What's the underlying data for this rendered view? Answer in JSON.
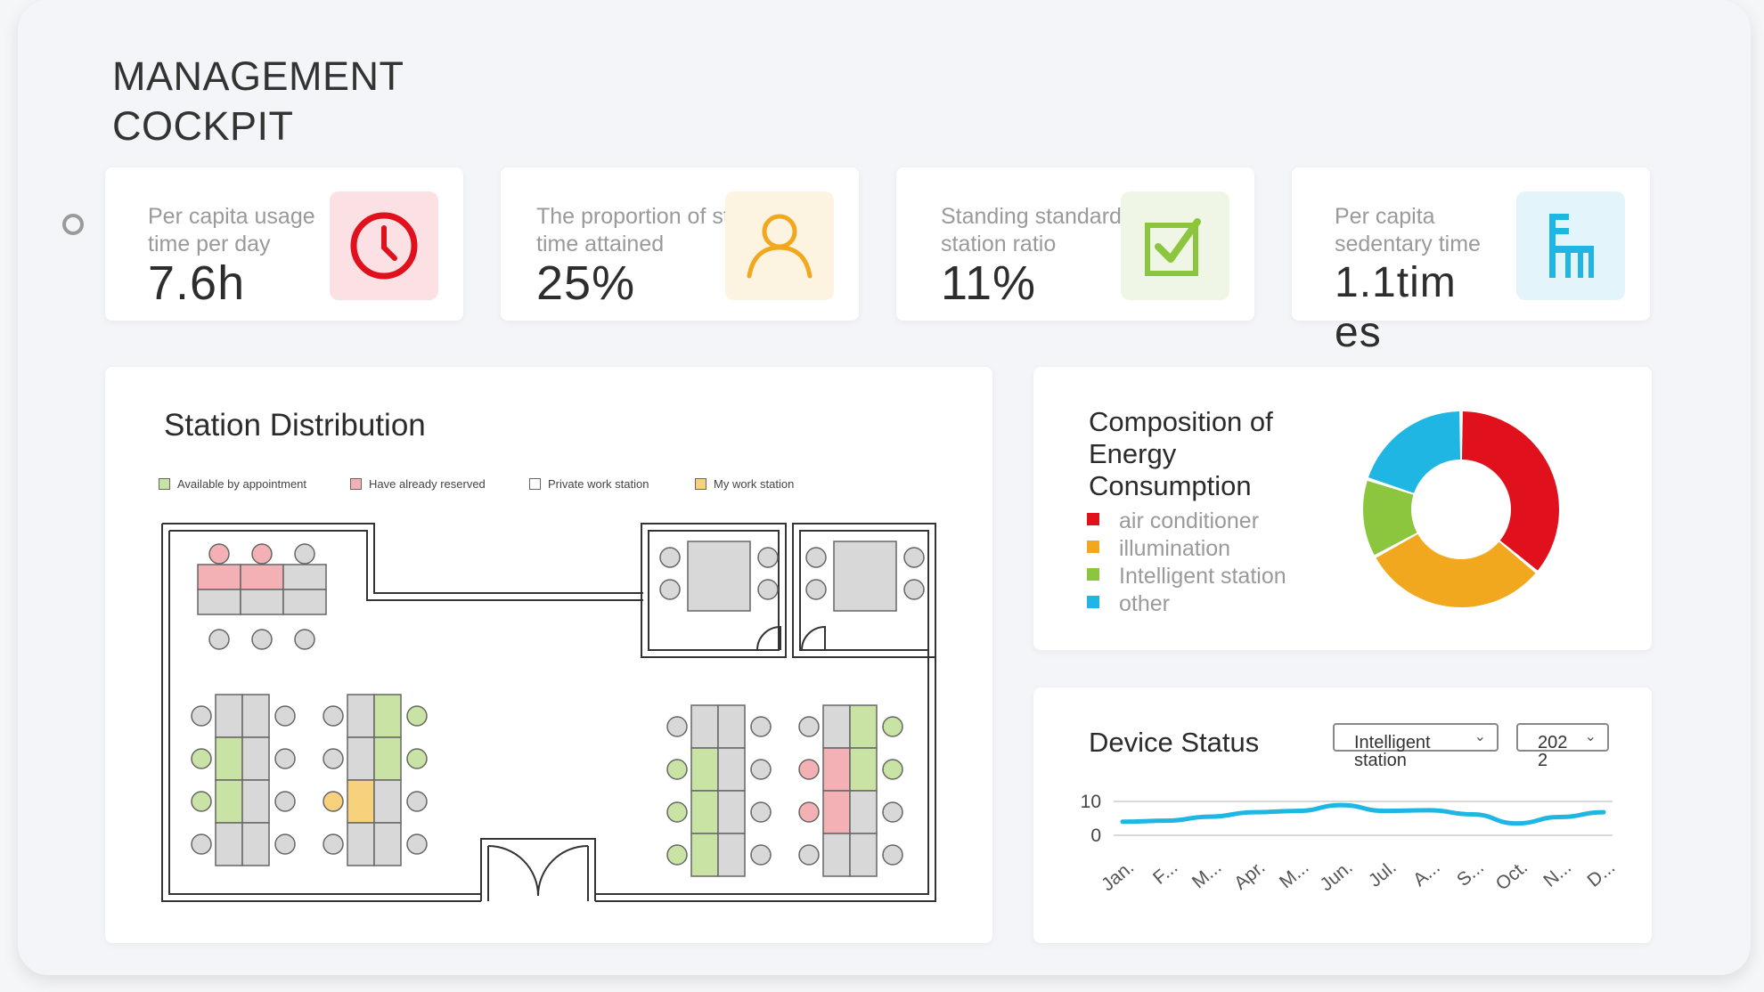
{
  "page": {
    "title_line1": "MANAGEMENT",
    "title_line2": "COCKPIT"
  },
  "kpis": [
    {
      "label": "Per capita usage time per day",
      "value": "7.6h",
      "icon": "clock-icon",
      "bg": "#fbe1e4",
      "color": "#e0101c"
    },
    {
      "label": "The proportion of standing time attained",
      "value": "25%",
      "icon": "person-icon",
      "bg": "#fdf3e1",
      "color": "#f2a81e"
    },
    {
      "label": "Standing standard station ratio",
      "value": "11%",
      "icon": "checkbox-icon",
      "bg": "#f0f6e6",
      "color": "#8cc63f"
    },
    {
      "label": "Per capita sedentary time",
      "value": "1.1times",
      "icon": "chair-icon",
      "bg": "#e3f5fb",
      "color": "#1fb6e3"
    }
  ],
  "station": {
    "title": "Station Distribution",
    "legend": [
      {
        "label": "Available by appointment",
        "color": "#c9e3a5"
      },
      {
        "label": "Have already reserved",
        "color": "#f3b1b5"
      },
      {
        "label": "Private work station",
        "color": "#ffffff"
      },
      {
        "label": "My work station",
        "color": "#f8d17c"
      }
    ]
  },
  "energy": {
    "title": "Composition of Energy Consumption",
    "legend": [
      {
        "label": "air conditioner",
        "color": "#e0101c"
      },
      {
        "label": "illumination",
        "color": "#f2a81e"
      },
      {
        "label": "Intelligent station",
        "color": "#8cc63f"
      },
      {
        "label": "other",
        "color": "#1fb6e3"
      }
    ]
  },
  "device": {
    "title": "Device Status",
    "select_type": "Intelligent station",
    "select_year": "2022"
  },
  "chart_data": [
    {
      "type": "pie",
      "title": "Composition of Energy Consumption",
      "categories": [
        "air conditioner",
        "illumination",
        "Intelligent station",
        "other"
      ],
      "values": [
        36,
        31,
        13,
        20
      ],
      "colors": [
        "#e0101c",
        "#f2a81e",
        "#8cc63f",
        "#1fb6e3"
      ]
    },
    {
      "type": "line",
      "title": "Device Status",
      "categories": [
        "Jan.",
        "F...",
        "M...",
        "Apr.",
        "M...",
        "Jun.",
        "Jul.",
        "A...",
        "S...",
        "Oct.",
        "N...",
        "D..."
      ],
      "series": [
        {
          "values": [
            4,
            4.3,
            5.5,
            6.8,
            7.2,
            8.9,
            7.2,
            7.4,
            6.2,
            3.5,
            5.4,
            6.8
          ]
        }
      ],
      "ylim": [
        0,
        10
      ],
      "yticks": [
        "10",
        "0"
      ],
      "color": "#1fb6e3",
      "grid": true
    }
  ]
}
